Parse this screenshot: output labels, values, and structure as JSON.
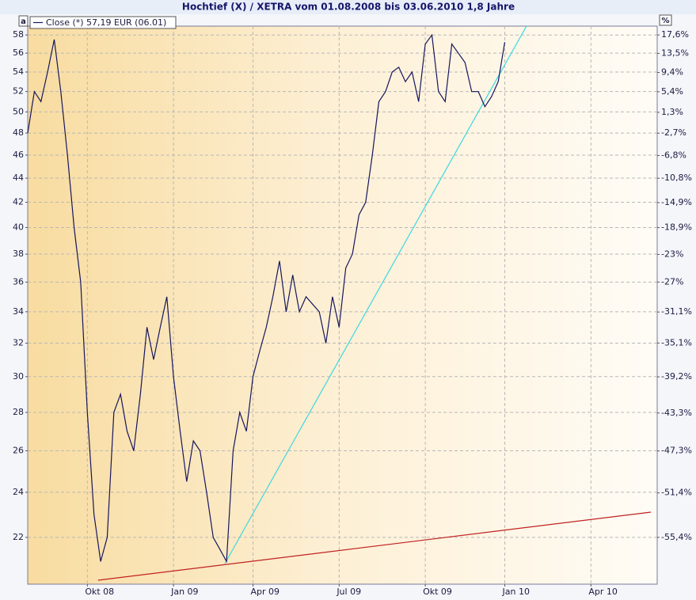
{
  "chart_data": {
    "type": "line",
    "title": "Hochtief (X) / XETRA vom 01.08.2008 bis 03.06.2010 1,8 Jahre",
    "corner_left": "a",
    "corner_right": "%",
    "log_scale": true,
    "grid": true,
    "categories": [
      null,
      null,
      null,
      null,
      null,
      null,
      null,
      null,
      null,
      "Okt 08",
      null,
      null,
      null,
      null,
      null,
      null,
      null,
      null,
      null,
      null,
      null,
      null,
      "Jan 09",
      null,
      null,
      null,
      null,
      null,
      null,
      null,
      null,
      null,
      null,
      null,
      "Apr 09",
      null,
      null,
      null,
      null,
      null,
      null,
      null,
      null,
      null,
      null,
      null,
      null,
      "Jul 09",
      null,
      null,
      null,
      null,
      null,
      null,
      null,
      null,
      null,
      null,
      null,
      null,
      "Okt 09",
      null,
      null,
      null,
      null,
      null,
      null,
      null,
      null,
      null,
      null,
      null,
      "Jan 10",
      null,
      null,
      null,
      null,
      null,
      null,
      null,
      null,
      null,
      null,
      null,
      null,
      "Apr 10",
      null,
      null,
      null,
      null,
      null,
      null,
      null,
      null,
      null,
      null
    ],
    "series": [
      {
        "name": "Close (*) 57,19 EUR (06.01)",
        "color": "#16165e",
        "values": [
          48,
          52,
          51,
          54,
          57.5,
          52,
          46,
          40,
          36,
          28,
          23,
          21,
          22,
          28,
          29,
          27,
          26,
          29,
          33,
          31,
          33,
          35,
          30,
          27,
          24.5,
          26.5,
          26,
          24,
          22,
          21.5,
          21,
          26,
          28,
          27,
          30,
          31.5,
          33,
          35,
          37.5,
          34,
          36.5,
          34,
          35,
          34.5,
          34,
          32,
          35,
          33,
          37,
          38,
          41,
          42,
          46,
          51,
          52,
          54,
          54.5,
          53,
          54,
          51,
          57,
          58,
          52,
          51,
          57,
          56,
          55,
          52,
          52,
          50.5,
          51.5,
          53,
          57.2,
          null,
          null,
          null,
          null,
          null,
          null,
          null,
          null,
          null,
          null,
          null,
          null,
          null,
          null,
          null,
          null,
          null,
          null,
          null,
          null,
          null,
          null,
          null
        ]
      }
    ],
    "ylim": [
      20.1,
      59
    ],
    "yticks": [
      22,
      24,
      26,
      28,
      30,
      32,
      34,
      36,
      38,
      40,
      42,
      44,
      46,
      48,
      50,
      52,
      54,
      56,
      58
    ],
    "y2lim": [
      -59.25,
      19.63
    ],
    "y2ticks": [
      {
        "value": 17.6,
        "label": "17,6%"
      },
      {
        "value": 13.5,
        "label": "13,5%"
      },
      {
        "value": 9.4,
        "label": "9,4%"
      },
      {
        "value": 5.4,
        "label": "5,4%"
      },
      {
        "value": 1.3,
        "label": "1,3%"
      },
      {
        "value": -2.7,
        "label": "-2,7%"
      },
      {
        "value": -6.8,
        "label": "-6,8%"
      },
      {
        "value": -10.8,
        "label": "-10,8%"
      },
      {
        "value": -14.9,
        "label": "-14,9%"
      },
      {
        "value": -18.9,
        "label": "-18,9%"
      },
      {
        "value": -23,
        "label": "-23%"
      },
      {
        "value": -27,
        "label": "-27%"
      },
      {
        "value": -31.1,
        "label": "-31,1%"
      },
      {
        "value": -35.1,
        "label": "-35,1%"
      },
      {
        "value": -39.2,
        "label": "-39,2%"
      },
      {
        "value": -43.3,
        "label": "-43,3%"
      },
      {
        "value": -47.3,
        "label": "-47,3%"
      },
      {
        "value": -51.4,
        "label": "-51,4%"
      },
      {
        "value": -55.4,
        "label": "-55,4%"
      }
    ]
  }
}
